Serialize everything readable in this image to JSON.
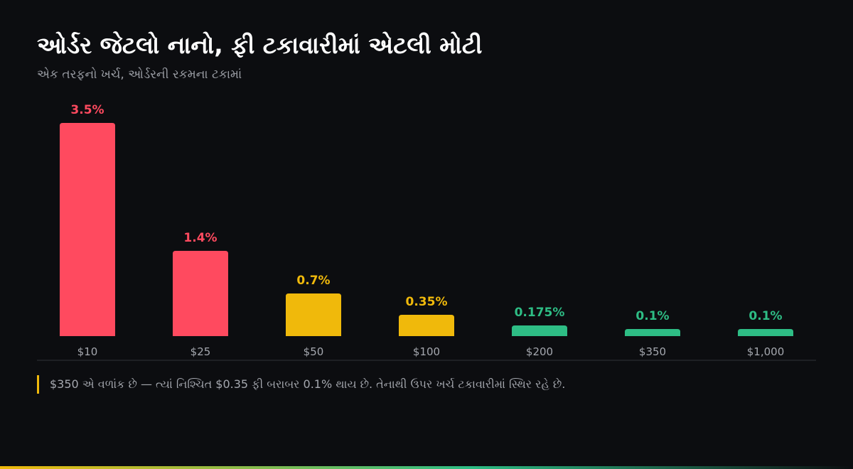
{
  "header": {
    "title": "ઓર્ડર જેટલો નાનો, ફી ટકાવારીમાં એટલી મોટી",
    "subtitle": "એક તરફનો ખર્ચ, ઓર્ડરની રકમના ટકામાં"
  },
  "note": "$350 એ વળાંક છે — ત્યાં નિશ્ચિત $0.35 ફી બરાબર 0.1% થાય છે. તેનાથી ઉપર ખર્ચ ટકાવારીમાં સ્થિર રહે છે.",
  "colors": {
    "background": "#0c0d10",
    "high": "#ff4a5f",
    "medium": "#f0b90b",
    "low": "#2ebd85",
    "axis": "#2f3238",
    "tick_text": "#a4a7ae"
  },
  "chart_data": {
    "type": "bar",
    "categories": [
      "$10",
      "$25",
      "$50",
      "$100",
      "$200",
      "$350",
      "$1,000"
    ],
    "values": [
      3.5,
      1.4,
      0.7,
      0.35,
      0.175,
      0.1,
      0.1
    ],
    "data_labels": [
      "3.5%",
      "1.4%",
      "0.7%",
      "0.35%",
      "0.175%",
      "0.1%",
      "0.1%"
    ],
    "bar_colors": [
      "high",
      "high",
      "medium",
      "medium",
      "low",
      "low",
      "low"
    ],
    "ylim": [
      0,
      3.5
    ],
    "grid": false,
    "legend": "none"
  }
}
